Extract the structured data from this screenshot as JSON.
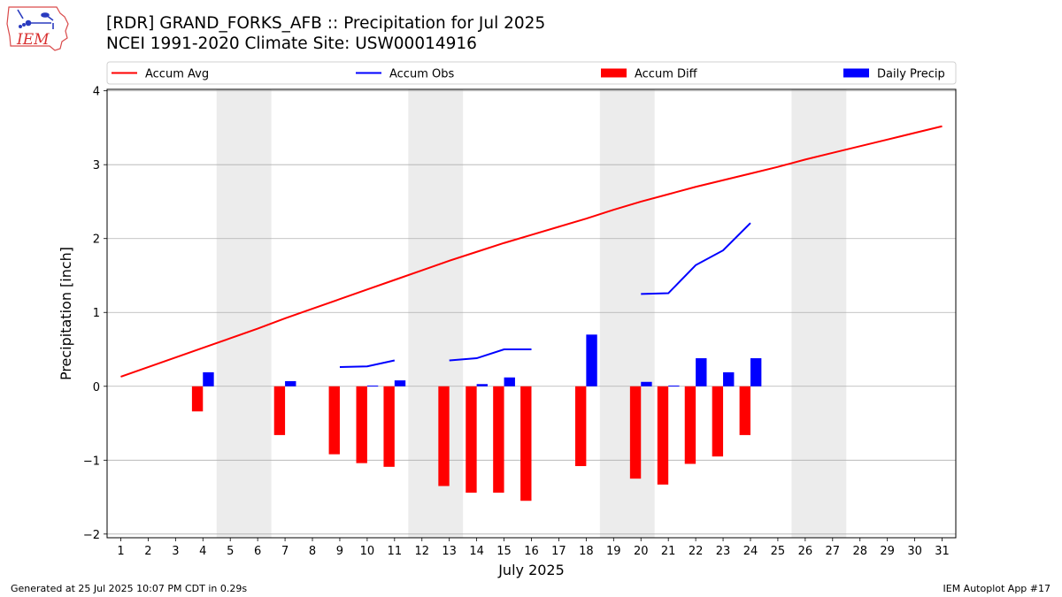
{
  "header": {
    "title_line1": "[RDR] GRAND_FORKS_AFB :: Precipitation for Jul 2025",
    "title_line2": "NCEI 1991-2020 Climate Site: USW00014916"
  },
  "logo": {
    "text": "IEM",
    "icon": "iem-iowa-logo"
  },
  "footer": {
    "left": "Generated at 25 Jul 2025 10:07 PM CDT in 0.29s",
    "right": "IEM Autoplot App #17"
  },
  "chart_data": {
    "type": "bar",
    "xlabel": "July 2025",
    "ylabel": "Precipitation [inch]",
    "ylim": [
      -2.05,
      4.02
    ],
    "xlim": [
      0.5,
      31.5
    ],
    "yticks": [
      -2,
      -1,
      0,
      1,
      2,
      3,
      4
    ],
    "ytick_labels": [
      "−2",
      "−1",
      "0",
      "1",
      "2",
      "3",
      "4"
    ],
    "xticks": [
      1,
      2,
      3,
      4,
      5,
      6,
      7,
      8,
      9,
      10,
      11,
      12,
      13,
      14,
      15,
      16,
      17,
      18,
      19,
      20,
      21,
      22,
      23,
      24,
      25,
      26,
      27,
      28,
      29,
      30,
      31
    ],
    "grid": "horizontal",
    "weekend_shading": [
      [
        4.5,
        6.5
      ],
      [
        11.5,
        13.5
      ],
      [
        18.5,
        20.5
      ],
      [
        25.5,
        27.5
      ]
    ],
    "legend": {
      "placement": "top",
      "entries": [
        {
          "label": "Accum Avg",
          "kind": "line",
          "color": "#ff0000"
        },
        {
          "label": "Accum Obs",
          "kind": "line",
          "color": "#0000ff"
        },
        {
          "label": "Accum Diff",
          "kind": "bar",
          "color": "#ff0000"
        },
        {
          "label": "Daily Precip",
          "kind": "bar",
          "color": "#0000ff"
        }
      ]
    },
    "series": [
      {
        "name": "Accum Avg",
        "kind": "line",
        "color": "#ff0000",
        "x": [
          1,
          2,
          3,
          4,
          5,
          6,
          7,
          8,
          9,
          10,
          11,
          12,
          13,
          14,
          15,
          16,
          17,
          18,
          19,
          20,
          21,
          22,
          23,
          24,
          25,
          26,
          27,
          28,
          29,
          30,
          31
        ],
        "values": [
          0.13,
          0.26,
          0.39,
          0.52,
          0.65,
          0.78,
          0.92,
          1.05,
          1.18,
          1.31,
          1.44,
          1.57,
          1.7,
          1.82,
          1.94,
          2.05,
          2.16,
          2.27,
          2.39,
          2.5,
          2.6,
          2.7,
          2.79,
          2.88,
          2.97,
          3.07,
          3.16,
          3.25,
          3.34,
          3.43,
          3.52
        ]
      },
      {
        "name": "Accum Obs",
        "kind": "line",
        "color": "#0000ff",
        "segments": [
          {
            "x": [
              9,
              10,
              11
            ],
            "values": [
              0.26,
              0.27,
              0.35
            ]
          },
          {
            "x": [
              13,
              14,
              15,
              16
            ],
            "values": [
              0.35,
              0.38,
              0.5,
              0.5
            ]
          },
          {
            "x": [
              20,
              21,
              22,
              23,
              24
            ],
            "values": [
              1.25,
              1.26,
              1.64,
              1.84,
              2.21
            ]
          }
        ]
      },
      {
        "name": "Accum Diff",
        "kind": "bar",
        "color": "#ff0000",
        "x": [
          4,
          7,
          9,
          10,
          11,
          13,
          14,
          15,
          16,
          18,
          20,
          21,
          22,
          23,
          24
        ],
        "values": [
          -0.34,
          -0.66,
          -0.92,
          -1.04,
          -1.09,
          -1.35,
          -1.44,
          -1.44,
          -1.55,
          -1.08,
          -1.25,
          -1.33,
          -1.05,
          -0.95,
          -0.66
        ]
      },
      {
        "name": "Daily Precip",
        "kind": "bar",
        "color": "#0000ff",
        "x": [
          4,
          7,
          10,
          11,
          14,
          15,
          18,
          20,
          21,
          22,
          23,
          24
        ],
        "values": [
          0.19,
          0.07,
          0.01,
          0.08,
          0.03,
          0.12,
          0.7,
          0.06,
          0.01,
          0.38,
          0.19,
          0.38
        ]
      }
    ]
  }
}
